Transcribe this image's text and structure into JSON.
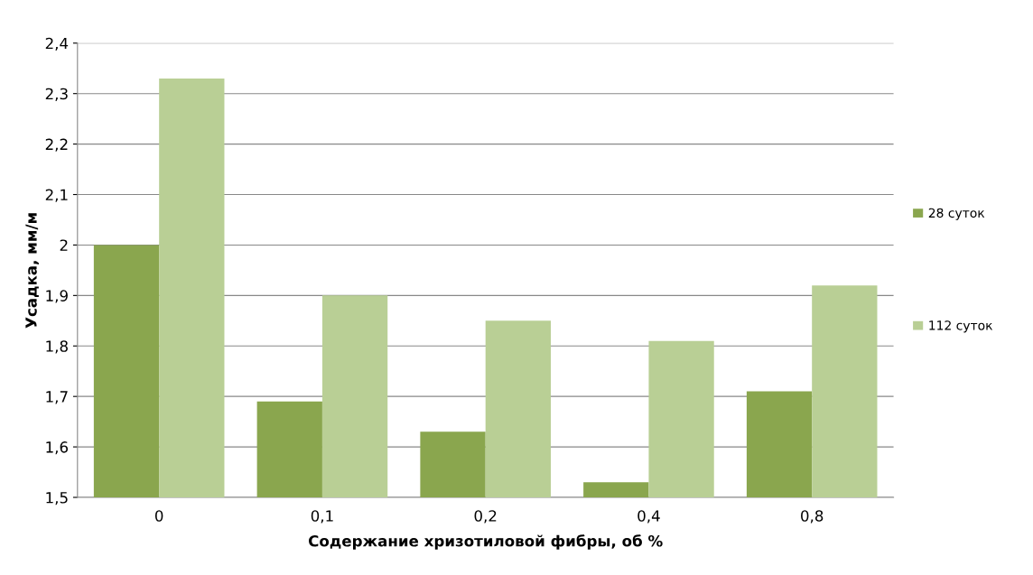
{
  "chart_data": {
    "type": "bar",
    "xlabel": "Содержание хризотиловой фибры, об %",
    "ylabel": "Усадка, мм/м",
    "categories": [
      "0",
      "0,1",
      "0,2",
      "0,4",
      "0,8"
    ],
    "series": [
      {
        "name": "28 суток",
        "color": "#8aa64e",
        "values": [
          2.0,
          1.69,
          1.63,
          1.53,
          1.71
        ]
      },
      {
        "name": "112 суток",
        "color": "#b9cf95",
        "values": [
          2.33,
          1.9,
          1.85,
          1.81,
          1.92
        ]
      }
    ],
    "ylim": [
      1.5,
      2.4
    ],
    "yticks": [
      {
        "value": 1.5,
        "label": "1,5"
      },
      {
        "value": 1.6,
        "label": "1,6"
      },
      {
        "value": 1.7,
        "label": "1,7"
      },
      {
        "value": 1.8,
        "label": "1,8"
      },
      {
        "value": 1.9,
        "label": "1,9"
      },
      2,
      {
        "value": 2.1,
        "label": "2,1"
      },
      {
        "value": 2.2,
        "label": "2,2"
      },
      {
        "value": 2.3,
        "label": "2,3"
      },
      {
        "value": 2.4,
        "label": "2,4"
      }
    ],
    "grid": "y",
    "legend": "right"
  }
}
